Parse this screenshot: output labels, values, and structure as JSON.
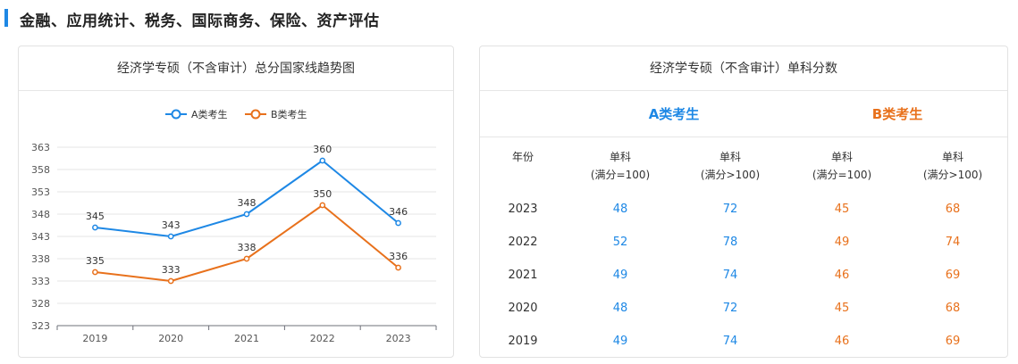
{
  "section": {
    "title": "金融、应用统计、税务、国际商务、保险、资产评估"
  },
  "left_card": {
    "title": "经济学专硕（不含审计）总分国家线趋势图"
  },
  "chart_data": {
    "type": "line",
    "title": "经济学专硕（不含审计）总分国家线趋势图",
    "categories": [
      "2019",
      "2020",
      "2021",
      "2022",
      "2023"
    ],
    "y_ticks": [
      323,
      328,
      333,
      338,
      343,
      348,
      353,
      358,
      363
    ],
    "ylim": [
      323,
      363
    ],
    "grid": true,
    "legend": "top-center",
    "series": [
      {
        "name": "A类考生",
        "values": [
          345,
          343,
          348,
          360,
          346
        ],
        "color": "#1e88e5"
      },
      {
        "name": "B类考生",
        "values": [
          335,
          333,
          338,
          350,
          336
        ],
        "color": "#e8711c"
      }
    ]
  },
  "right_card": {
    "title": "经济学专硕（不含审计）单科分数",
    "group_a": "A类考生",
    "group_b": "B类考生",
    "headers": {
      "year": "年份",
      "h1": [
        "单科",
        "(满分=100)"
      ],
      "h2": [
        "单科",
        "(满分>100)"
      ],
      "h3": [
        "单科",
        "(满分=100)"
      ],
      "h4": [
        "单科",
        "(满分>100)"
      ]
    },
    "rows": [
      {
        "year": "2023",
        "a1": "48",
        "a2": "72",
        "b1": "45",
        "b2": "68"
      },
      {
        "year": "2022",
        "a1": "52",
        "a2": "78",
        "b1": "49",
        "b2": "74"
      },
      {
        "year": "2021",
        "a1": "49",
        "a2": "74",
        "b1": "46",
        "b2": "69"
      },
      {
        "year": "2020",
        "a1": "48",
        "a2": "72",
        "b1": "45",
        "b2": "68"
      },
      {
        "year": "2019",
        "a1": "49",
        "a2": "74",
        "b1": "46",
        "b2": "69"
      }
    ]
  }
}
